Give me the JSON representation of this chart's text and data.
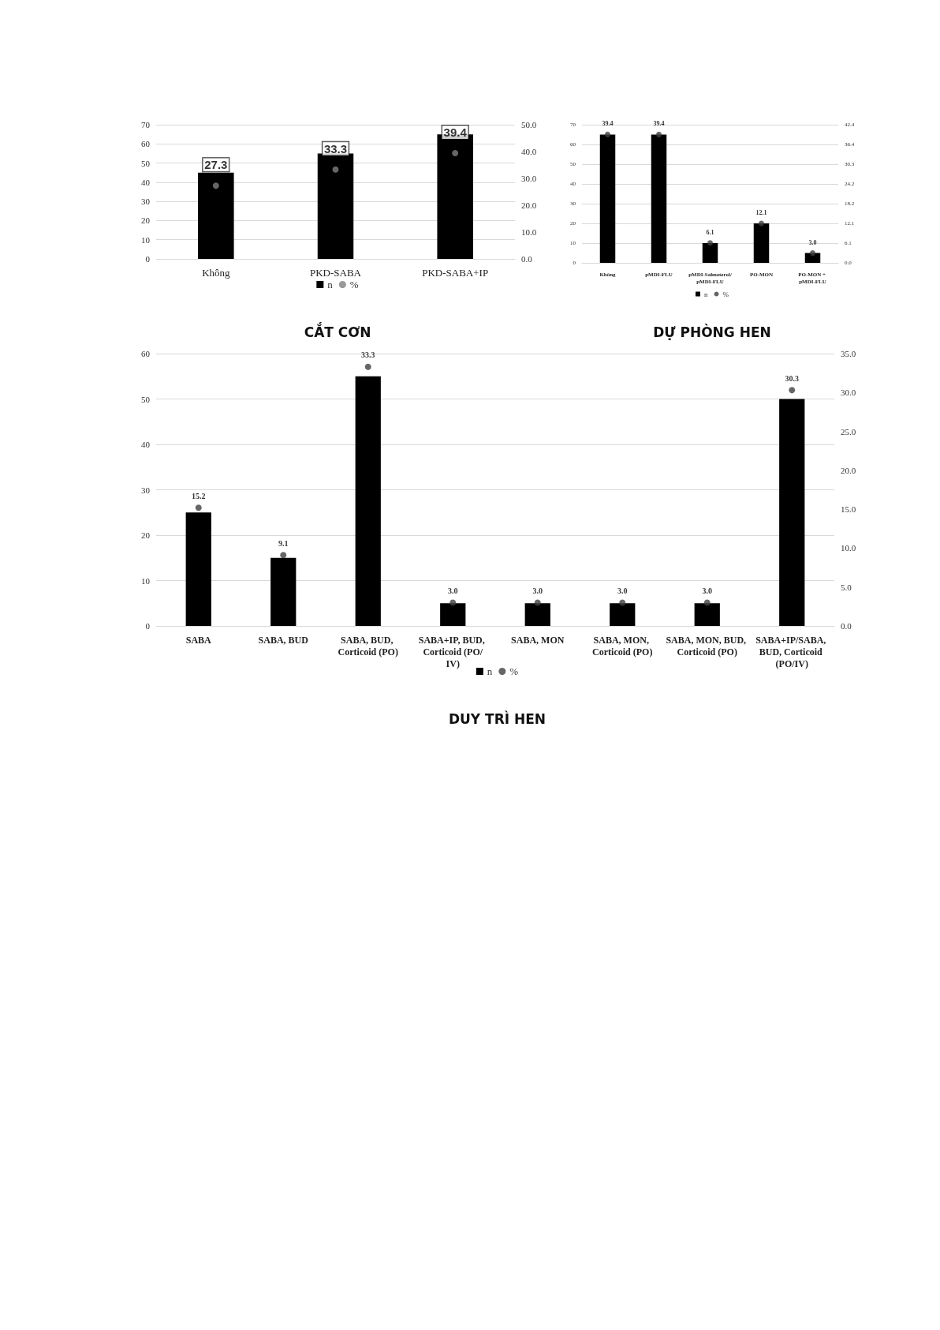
{
  "chart_data": [
    {
      "type": "bar",
      "title": "CẮT CƠN",
      "categories": [
        "Không",
        "PKD-SABA",
        "PKD-SABA+IP"
      ],
      "series": [
        {
          "name": "n",
          "color": "#000000",
          "values": [
            45,
            55,
            65
          ]
        },
        {
          "name": "%",
          "type": "scatter",
          "axis": "y2",
          "color": "#7f7f7f",
          "values": [
            27.3,
            33.3,
            39.4
          ],
          "value_labels": [
            "27.3",
            "33.3",
            "39.4"
          ]
        }
      ],
      "ylim": [
        0,
        70
      ],
      "yticks": [
        0,
        10,
        20,
        30,
        40,
        50,
        60,
        70
      ],
      "y2lim": [
        0,
        50
      ],
      "y2ticks": [
        {
          "value": 0,
          "label": "0.0"
        },
        {
          "value": 10,
          "label": "10.0"
        },
        {
          "value": 20,
          "label": "20.0"
        },
        {
          "value": 30,
          "label": "30.0"
        },
        {
          "value": 40,
          "label": "40.0"
        },
        {
          "value": 50,
          "label": "50.0"
        }
      ],
      "grid": "y",
      "legend": "bottom",
      "marker": "circle"
    },
    {
      "type": "bar",
      "title": "DỰ PHÒNG HEN",
      "categories": [
        "Không",
        "pMDI-FLU",
        "pMDI-Salmeterol/pMDI-FLU",
        "PO-MON",
        "PO-MON + pMDI-FLU"
      ],
      "series": [
        {
          "name": "n",
          "color": "#000000",
          "values": [
            65,
            65,
            10,
            20,
            5
          ]
        },
        {
          "name": "%",
          "type": "scatter",
          "axis": "y2",
          "color": "#404040",
          "values": [
            39.4,
            39.4,
            6.1,
            12.1,
            3.0
          ],
          "value_labels": [
            "39.4",
            "39.4",
            "6.1",
            "12.1",
            "3.0"
          ]
        }
      ],
      "ylim": [
        0,
        70
      ],
      "yticks": [
        0,
        10,
        20,
        30,
        40,
        50,
        60,
        70
      ],
      "y2lim": [
        0,
        42.4
      ],
      "y2ticks": [
        {
          "value": 0,
          "label": "0.0"
        },
        6.1,
        12.1,
        18.2,
        24.2,
        30.3,
        36.4,
        42.4
      ],
      "grid": "y",
      "legend": "bottom",
      "marker": "circle"
    },
    {
      "type": "bar",
      "title": "DUY TRÌ HEN",
      "categories": [
        "SABA",
        "SABA, BUD",
        "SABA, BUD, Corticoid (PO)",
        "SABA+IP, BUD, Corticoid (PO/IV)",
        "SABA, MON",
        "SABA, MON, Corticoid (PO)",
        "SABA, MON, BUD, Corticoid (PO)",
        "SABA+IP/SABA, BUD, Corticoid (PO/IV)"
      ],
      "series": [
        {
          "name": "n",
          "color": "#000000",
          "values": [
            25,
            15,
            55,
            5,
            5,
            5,
            5,
            50
          ]
        },
        {
          "name": "%",
          "type": "scatter",
          "axis": "y2",
          "color": "#404040",
          "values": [
            15.2,
            9.1,
            33.3,
            3.0,
            3.0,
            3.0,
            3.0,
            30.3
          ],
          "value_labels": [
            "15.2",
            "9.1",
            "33.3",
            "3.0",
            "3.0",
            "3.0",
            "3.0",
            "30.3"
          ]
        }
      ],
      "ylim": [
        0,
        60
      ],
      "yticks": [
        0,
        10,
        20,
        30,
        40,
        50,
        60
      ],
      "y2lim": [
        0,
        35
      ],
      "y2ticks": [
        {
          "value": 0,
          "label": "0.0"
        },
        {
          "value": 5,
          "label": "5.0"
        },
        {
          "value": 10,
          "label": "10.0"
        },
        {
          "value": 15,
          "label": "15.0"
        },
        {
          "value": 20,
          "label": "20.0"
        },
        {
          "value": 25,
          "label": "25.0"
        },
        {
          "value": 30,
          "label": "30.0"
        },
        {
          "value": 35,
          "label": "35.0"
        }
      ],
      "grid": "y",
      "legend": "bottom",
      "marker": "circle"
    }
  ]
}
